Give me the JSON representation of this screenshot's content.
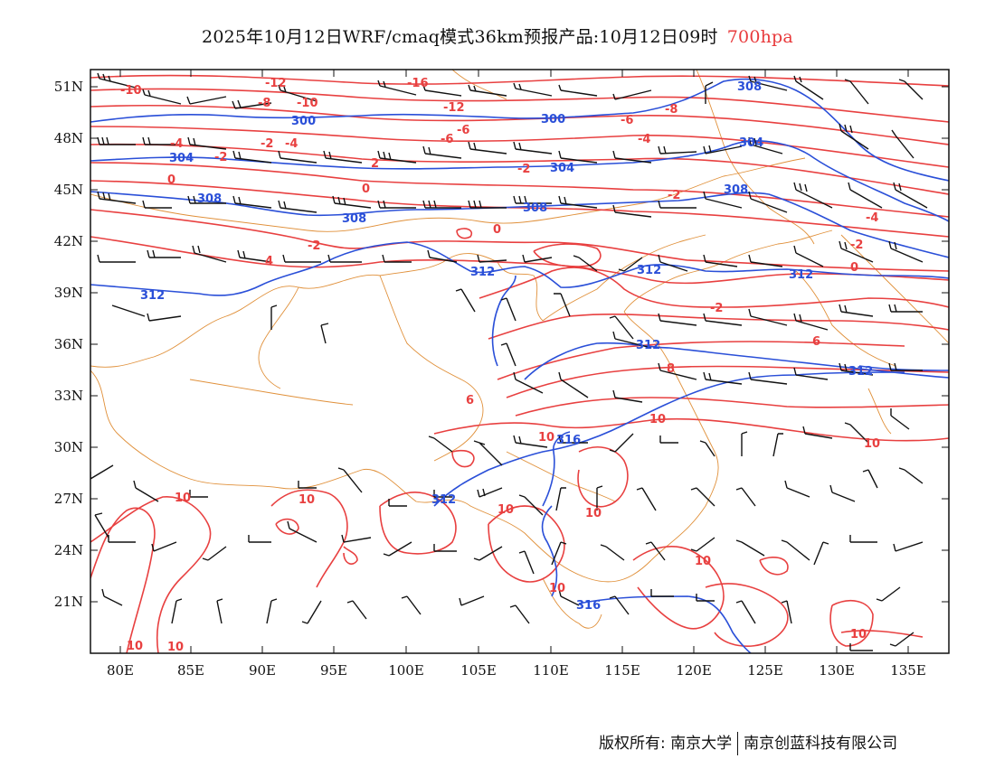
{
  "title": {
    "main": "2025年10月12日WRF/cmaq模式36km预报产品:10月12日09时",
    "level": "700hpa"
  },
  "axes": {
    "lat_labels": [
      "51N",
      "48N",
      "45N",
      "42N",
      "39N",
      "36N",
      "33N",
      "30N",
      "27N",
      "24N",
      "21N"
    ],
    "lon_labels": [
      "80E",
      "85E",
      "90E",
      "95E",
      "100E",
      "105E",
      "110E",
      "115E",
      "120E",
      "125E",
      "130E",
      "135E"
    ]
  },
  "contours": {
    "temperature_labels": [
      "-16",
      "-12",
      "-12",
      "-10",
      "-10",
      "-8",
      "-8",
      "-6",
      "-6",
      "-6",
      "-4",
      "-4",
      "-4",
      "-2",
      "-2",
      "-2",
      "-2",
      "0",
      "0",
      "0",
      "0",
      "-2",
      "2",
      "-2",
      "-2",
      "4",
      "-4",
      "6",
      "6",
      "8",
      "10",
      "10",
      "10",
      "10",
      "10",
      "10",
      "10",
      "10",
      "10",
      "10",
      "10"
    ],
    "height_labels": [
      "300",
      "300",
      "304",
      "304",
      "304",
      "308",
      "308",
      "308",
      "308",
      "312",
      "312",
      "312",
      "312",
      "312",
      "316",
      "316"
    ]
  },
  "footer": {
    "copyright": "版权所有: 南京大学",
    "company": "南京创蓝科技有限公司"
  },
  "colors": {
    "temperature": "#e84040",
    "height": "#2a4fd8",
    "border": "#e0903a",
    "barb": "#111111"
  }
}
